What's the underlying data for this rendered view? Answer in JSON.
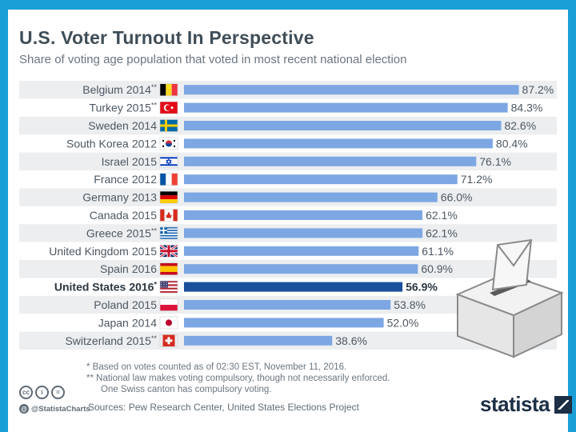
{
  "title": "U.S. Voter Turnout In Perspective",
  "subtitle": "Share of voting age population that voted in most recent national election",
  "chart_data": {
    "type": "bar",
    "orientation": "horizontal",
    "title": "U.S. Voter Turnout In Perspective",
    "subtitle": "Share of voting age population that voted in most recent national election",
    "xlabel": "",
    "ylabel": "",
    "xlim": [
      0,
      100
    ],
    "unit": "%",
    "categories": [
      {
        "country": "Belgium",
        "year": "2014",
        "mark": "**"
      },
      {
        "country": "Turkey",
        "year": "2015",
        "mark": "**"
      },
      {
        "country": "Sweden",
        "year": "2014",
        "mark": ""
      },
      {
        "country": "South Korea",
        "year": "2012",
        "mark": ""
      },
      {
        "country": "Israel",
        "year": "2015",
        "mark": ""
      },
      {
        "country": "France",
        "year": "2012",
        "mark": ""
      },
      {
        "country": "Germany",
        "year": "2013",
        "mark": ""
      },
      {
        "country": "Canada",
        "year": "2015",
        "mark": ""
      },
      {
        "country": "Greece",
        "year": "2015",
        "mark": "**"
      },
      {
        "country": "United Kingdom",
        "year": "2015",
        "mark": ""
      },
      {
        "country": "Spain",
        "year": "2016",
        "mark": ""
      },
      {
        "country": "United States",
        "year": "2016",
        "mark": "*"
      },
      {
        "country": "Poland",
        "year": "2015",
        "mark": ""
      },
      {
        "country": "Japan",
        "year": "2014",
        "mark": ""
      },
      {
        "country": "Switzerland",
        "year": "2015",
        "mark": "**"
      }
    ],
    "values": [
      87.2,
      84.3,
      82.6,
      80.4,
      76.1,
      71.2,
      66.0,
      62.1,
      62.1,
      61.1,
      60.9,
      56.9,
      53.8,
      52.0,
      38.6
    ],
    "value_labels": [
      "87.2%",
      "84.3%",
      "82.6%",
      "80.4%",
      "76.1%",
      "71.2%",
      "66.0%",
      "62.1%",
      "62.1%",
      "61.1%",
      "60.9%",
      "56.9%",
      "53.8%",
      "52.0%",
      "38.6%"
    ],
    "highlight": "United States",
    "bar_color": "#7da7e3",
    "highlight_color": "#1a4f9c"
  },
  "notes": {
    "line1": "*   Based on votes counted as of 02:30 EST, November 11, 2016.",
    "line2": "** National law makes voting compulsory, though not necessarily enforced.",
    "line3": "One Swiss canton has compulsory voting."
  },
  "source": "Sources: Pew Research Center, United States Elections Project",
  "branding": {
    "license_icons": [
      "cc",
      "i",
      "="
    ],
    "handle": "@StatistaCharts",
    "logo": "statista"
  },
  "colors": {
    "frame": "#1a9fd6",
    "stripe": "#eceef0",
    "title": "#3f4d57"
  }
}
